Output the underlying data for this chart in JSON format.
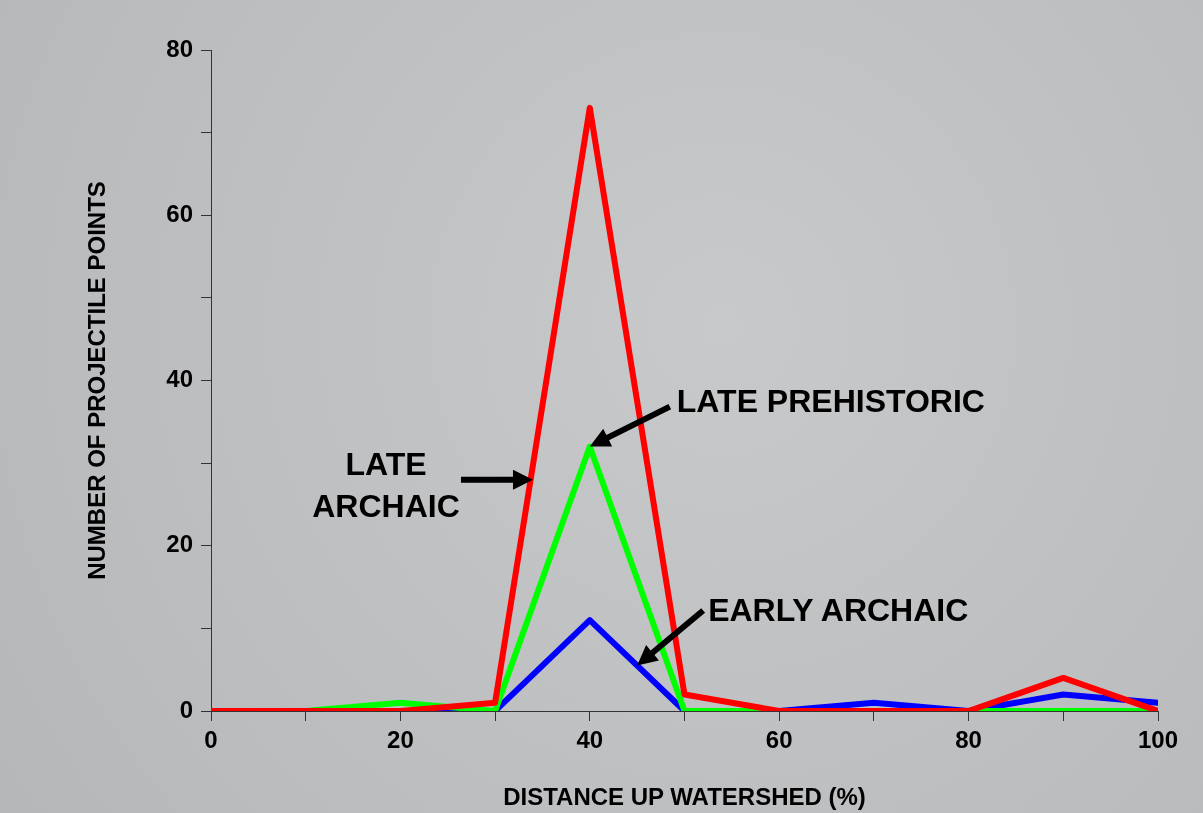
{
  "chart_data": {
    "type": "line",
    "xlabel": "DISTANCE UP WATERSHED (%)",
    "ylabel": "NUMBER OF PROJECTILE POINTS",
    "x": [
      0,
      10,
      20,
      30,
      40,
      50,
      60,
      70,
      80,
      90,
      100
    ],
    "series": [
      {
        "color": "#ff0000",
        "values": [
          0,
          0,
          0,
          1,
          73,
          2,
          0,
          0,
          0,
          4,
          0
        ]
      },
      {
        "color": "#00ff00",
        "values": [
          0,
          0,
          1,
          0,
          32,
          0,
          0,
          0,
          0,
          0,
          0
        ]
      },
      {
        "color": "#0000ff",
        "values": [
          0,
          0,
          0,
          0,
          11,
          0,
          0,
          1,
          0,
          2,
          1
        ]
      }
    ],
    "annotations": [
      {
        "text": "LATE ARCHAIC",
        "x": 34,
        "y": 28
      },
      {
        "text": "LATE PREHISTORIC",
        "x": 40,
        "y": 32
      },
      {
        "text": "EARLY ARCHAIC",
        "x": 45,
        "y": 5.5
      }
    ],
    "xlim": [
      0,
      100
    ],
    "xticks": [
      0,
      {
        "value": 10,
        "label": null
      },
      20,
      {
        "value": 30,
        "label": null
      },
      40,
      {
        "value": 50,
        "label": null
      },
      60,
      {
        "value": 70,
        "label": null
      },
      80,
      {
        "value": 90,
        "label": null
      },
      100
    ],
    "ylim": [
      0,
      80
    ],
    "yticks": [
      0,
      {
        "value": 10,
        "label": null
      },
      20,
      {
        "value": 30,
        "label": null
      },
      40,
      {
        "value": 50,
        "label": null
      },
      60,
      {
        "value": 70,
        "label": null
      },
      80
    ],
    "grid": false,
    "legend": false,
    "marker": "none",
    "line_style": "solid"
  }
}
